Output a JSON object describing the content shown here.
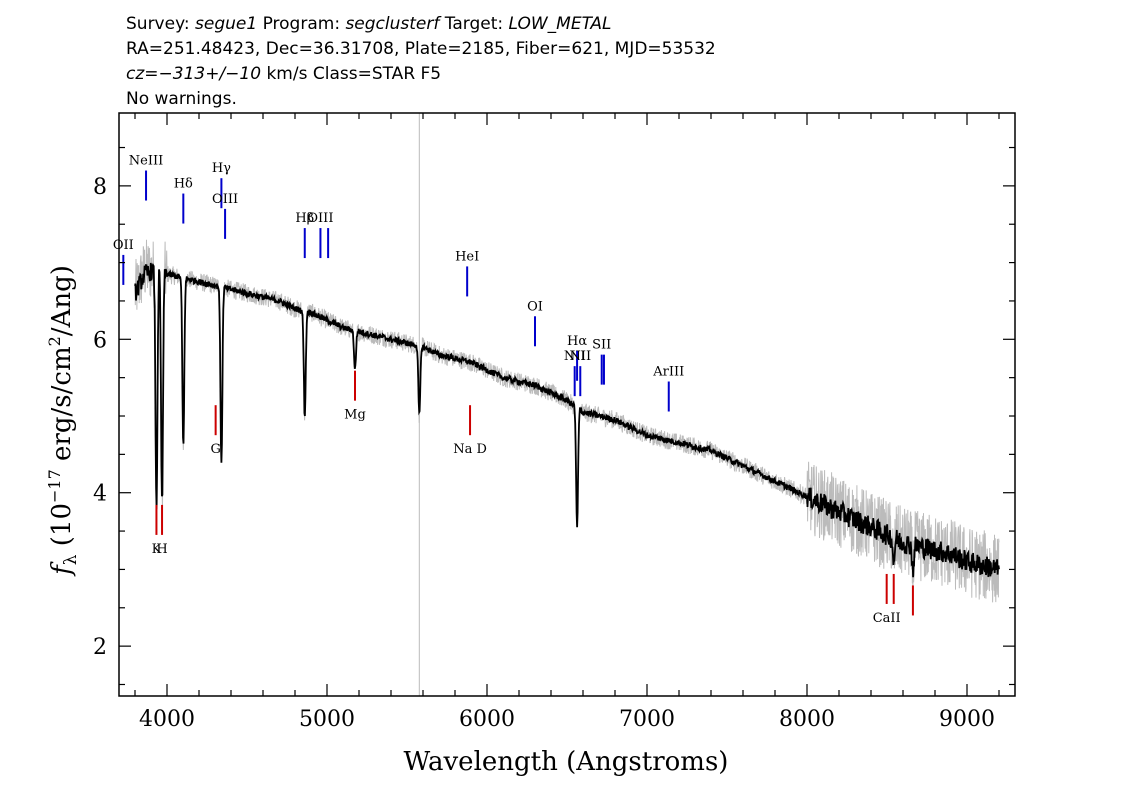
{
  "header": {
    "line1": {
      "survey_label": "Survey: ",
      "survey": "segue1",
      "program_label": " Program: ",
      "program": "segclusterf",
      "target_label": " Target: ",
      "target": "LOW_METAL"
    },
    "line2": "RA=251.48423, Dec=36.31708, Plate=2185, Fiber=621, MJD=53532",
    "line3": {
      "cz": "cz=−313+/−10",
      "rest": " km/s Class=STAR F5"
    },
    "line4": "No warnings."
  },
  "chart_data": {
    "type": "line",
    "xlabel": "Wavelength (Angstroms)",
    "ylabel_parts": {
      "f": "f",
      "sub": "λ",
      "a": " (10",
      "sup1": "−17",
      "b": " erg/s/cm",
      "sup2": "2",
      "c": "/Ang)"
    },
    "xlim": [
      3700,
      9300
    ],
    "ylim": [
      1.35,
      8.95
    ],
    "x_ticks": [
      4000,
      5000,
      6000,
      7000,
      8000,
      9000
    ],
    "x_tick_labels": [
      "4000",
      "5000",
      "6000",
      "7000",
      "8000",
      "9000"
    ],
    "y_ticks": [
      2,
      4,
      6,
      8
    ],
    "y_tick_labels": [
      "2",
      "4",
      "6",
      "8"
    ],
    "sky_line": 5577,
    "series": [
      {
        "role": "flux",
        "color": "#bbbbbb",
        "x": [
          3800,
          3860,
          3920,
          4000,
          4100,
          4200,
          4300,
          4400,
          4500,
          4600,
          4700,
          4800,
          4900,
          5000,
          5100,
          5200,
          5300,
          5400,
          5500,
          5600,
          5700,
          5800,
          5900,
          6000,
          6100,
          6200,
          6300,
          6400,
          6500,
          6600,
          6700,
          6800,
          6900,
          7000,
          7100,
          7200,
          7300,
          7400,
          7500,
          7600,
          7700,
          7800,
          7900,
          8000,
          8100,
          8200,
          8300,
          8400,
          8500,
          8600,
          8700,
          8800,
          8900,
          9000,
          9100,
          9200
        ],
        "y": [
          6.6,
          6.9,
          6.9,
          6.85,
          6.8,
          6.75,
          6.7,
          6.65,
          6.6,
          6.55,
          6.5,
          6.4,
          6.35,
          6.25,
          6.15,
          6.1,
          6.05,
          6.0,
          5.95,
          5.9,
          5.8,
          5.75,
          5.7,
          5.6,
          5.5,
          5.45,
          5.4,
          5.3,
          5.2,
          5.05,
          5.0,
          4.95,
          4.85,
          4.75,
          4.7,
          4.65,
          4.6,
          4.55,
          4.45,
          4.35,
          4.25,
          4.15,
          4.05,
          3.95,
          3.85,
          3.75,
          3.65,
          3.55,
          3.45,
          3.35,
          3.3,
          3.25,
          3.2,
          3.1,
          3.05,
          3.0
        ]
      },
      {
        "role": "model",
        "color": "#000000",
        "x": [
          3800,
          3860,
          3920,
          4000,
          4100,
          4200,
          4300,
          4400,
          4500,
          4600,
          4700,
          4800,
          4900,
          5000,
          5100,
          5200,
          5300,
          5400,
          5500,
          5600,
          5700,
          5800,
          5900,
          6000,
          6100,
          6200,
          6300,
          6400,
          6500,
          6600,
          6700,
          6800,
          6900,
          7000,
          7100,
          7200,
          7300,
          7400,
          7500,
          7600,
          7700,
          7800,
          7900,
          8000,
          8100,
          8200,
          8300,
          8400,
          8500,
          8600,
          8700,
          8800,
          8900,
          9000,
          9100,
          9200
        ],
        "y": [
          6.6,
          6.85,
          6.9,
          6.85,
          6.8,
          6.75,
          6.7,
          6.65,
          6.6,
          6.55,
          6.5,
          6.4,
          6.35,
          6.25,
          6.15,
          6.1,
          6.05,
          6.0,
          5.95,
          5.9,
          5.8,
          5.75,
          5.7,
          5.6,
          5.5,
          5.45,
          5.4,
          5.3,
          5.2,
          5.05,
          5.0,
          4.95,
          4.85,
          4.75,
          4.7,
          4.65,
          4.6,
          4.55,
          4.45,
          4.35,
          4.25,
          4.15,
          4.05,
          3.95,
          3.85,
          3.75,
          3.65,
          3.55,
          3.45,
          3.35,
          3.3,
          3.25,
          3.2,
          3.1,
          3.05,
          3.0
        ]
      }
    ],
    "absorption_dips": [
      {
        "x": 3934,
        "y": 3.8
      },
      {
        "x": 3969,
        "y": 3.8
      },
      {
        "x": 4102,
        "y": 4.6
      },
      {
        "x": 4340,
        "y": 4.4
      },
      {
        "x": 4861,
        "y": 5.0
      },
      {
        "x": 5175,
        "y": 5.6
      },
      {
        "x": 5577,
        "y": 5.0
      },
      {
        "x": 6563,
        "y": 3.55
      },
      {
        "x": 8542,
        "y": 3.1
      },
      {
        "x": 8662,
        "y": 3.0
      }
    ],
    "emission_lines": [
      {
        "label": "OII",
        "x": 3727,
        "y": 7.1
      },
      {
        "label": "NeIII",
        "x": 3869,
        "y": 8.2
      },
      {
        "label": "Hδ",
        "x": 4102,
        "y": 7.9
      },
      {
        "label": "Hγ",
        "x": 4340,
        "y": 8.1
      },
      {
        "label": "OIII",
        "x": 4363,
        "y": 7.7
      },
      {
        "label": "Hβ",
        "x": 4861,
        "y": 7.45
      },
      {
        "label": "OIII",
        "x": 4959,
        "y": 7.45
      },
      {
        "label": "",
        "x": 5007,
        "y": 7.45
      },
      {
        "label": "HeI",
        "x": 5876,
        "y": 6.95
      },
      {
        "label": "OI",
        "x": 6300,
        "y": 6.3
      },
      {
        "label": "NII",
        "x": 6548,
        "y": 5.65
      },
      {
        "label": "Hα",
        "x": 6563,
        "y": 5.85
      },
      {
        "label": "NII",
        "x": 6583,
        "y": 5.65
      },
      {
        "label": "SII",
        "x": 6717,
        "y": 5.8
      },
      {
        "label": "",
        "x": 6731,
        "y": 5.8
      },
      {
        "label": "ArIII",
        "x": 7136,
        "y": 5.45
      }
    ],
    "absorption_lines": [
      {
        "label": "K",
        "x": 3934,
        "y": 3.45
      },
      {
        "label": "H",
        "x": 3969,
        "y": 3.45
      },
      {
        "label": "G",
        "x": 4304,
        "y": 4.75
      },
      {
        "label": "Mg",
        "x": 5175,
        "y": 5.2
      },
      {
        "label": "Na D",
        "x": 5894,
        "y": 4.75
      },
      {
        "label": "CaII",
        "x": 8498,
        "y": 2.55
      },
      {
        "label": "",
        "x": 8542,
        "y": 2.55
      },
      {
        "label": "",
        "x": 8662,
        "y": 2.4
      }
    ],
    "colors": {
      "emission": "#0000cc",
      "absorption": "#cc0000",
      "sky": "#bbbbbb",
      "axis": "#000000"
    }
  }
}
